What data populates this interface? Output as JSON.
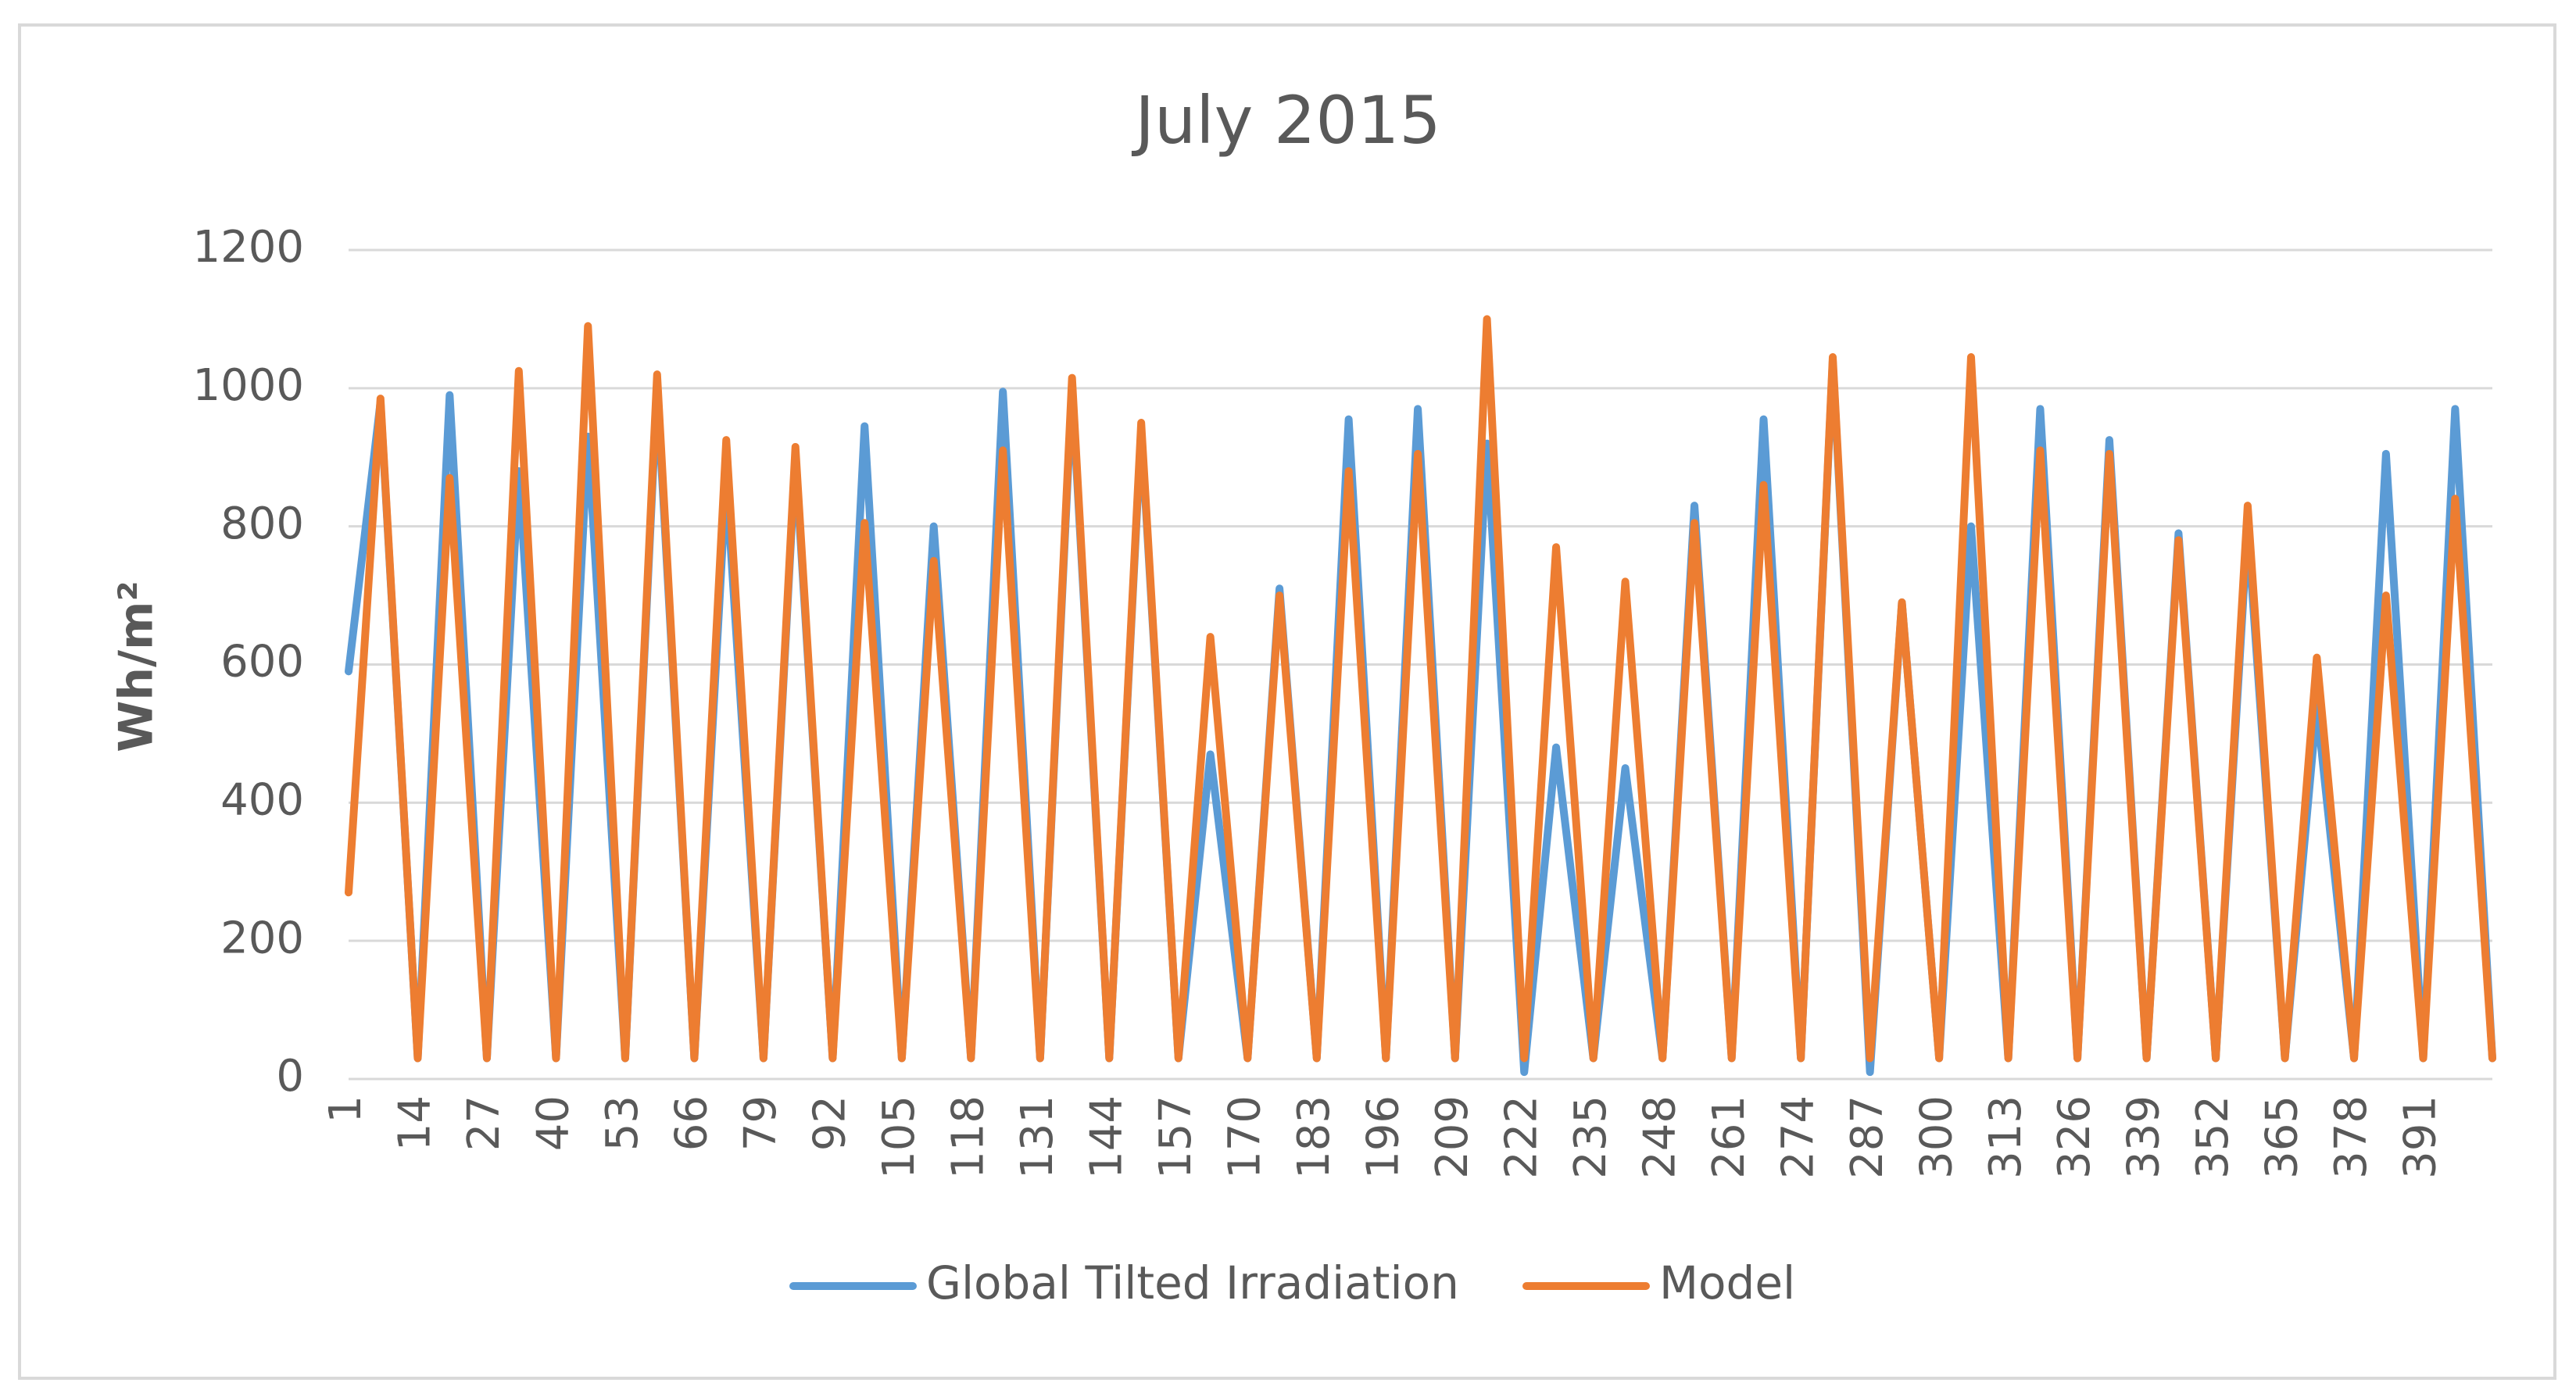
{
  "chart_data": {
    "type": "line",
    "title": "July 2015",
    "y_label": "Wh/m²",
    "x": [
      1,
      7,
      14,
      20,
      27,
      33,
      40,
      46,
      53,
      59,
      66,
      72,
      79,
      85,
      92,
      98,
      105,
      111,
      118,
      124,
      131,
      137,
      144,
      150,
      157,
      163,
      170,
      176,
      183,
      189,
      196,
      202,
      209,
      215,
      222,
      228,
      235,
      241,
      248,
      254,
      261,
      267,
      274,
      280,
      287,
      293,
      300,
      306,
      313,
      319,
      326,
      332,
      339,
      345,
      352,
      358,
      365,
      371,
      378,
      384,
      391,
      397,
      404
    ],
    "series": [
      {
        "name": "Global Tilted Irradiation",
        "color": "#5b9bd5",
        "values": [
          590,
          980,
          30,
          990,
          30,
          880,
          30,
          930,
          30,
          1000,
          30,
          870,
          30,
          900,
          30,
          945,
          30,
          800,
          30,
          995,
          30,
          1000,
          30,
          940,
          30,
          470,
          30,
          710,
          30,
          955,
          30,
          970,
          30,
          920,
          10,
          480,
          30,
          450,
          30,
          830,
          30,
          955,
          30,
          1040,
          10,
          690,
          30,
          800,
          30,
          970,
          30,
          925,
          30,
          790,
          30,
          800,
          30,
          540,
          30,
          905,
          30,
          970,
          30
        ]
      },
      {
        "name": "Model",
        "color": "#ed7d31",
        "values": [
          270,
          985,
          30,
          870,
          30,
          1025,
          30,
          1090,
          30,
          1020,
          30,
          925,
          30,
          915,
          30,
          805,
          30,
          750,
          30,
          910,
          30,
          1015,
          30,
          950,
          30,
          640,
          30,
          700,
          30,
          880,
          30,
          905,
          30,
          1100,
          30,
          770,
          30,
          720,
          30,
          805,
          30,
          860,
          30,
          1045,
          30,
          690,
          30,
          1045,
          30,
          910,
          30,
          905,
          30,
          780,
          30,
          830,
          30,
          610,
          30,
          700,
          30,
          840,
          30
        ]
      }
    ],
    "xlim": [
      1,
      404
    ],
    "xticks": [
      1,
      14,
      27,
      40,
      53,
      66,
      79,
      92,
      105,
      118,
      131,
      144,
      157,
      170,
      183,
      196,
      209,
      222,
      235,
      248,
      261,
      274,
      287,
      300,
      313,
      326,
      339,
      352,
      365,
      378,
      391
    ],
    "ylim": [
      0,
      1200
    ],
    "yticks": [
      0,
      200,
      400,
      600,
      800,
      1000,
      1200
    ],
    "grid": true,
    "legend": "bottom"
  }
}
